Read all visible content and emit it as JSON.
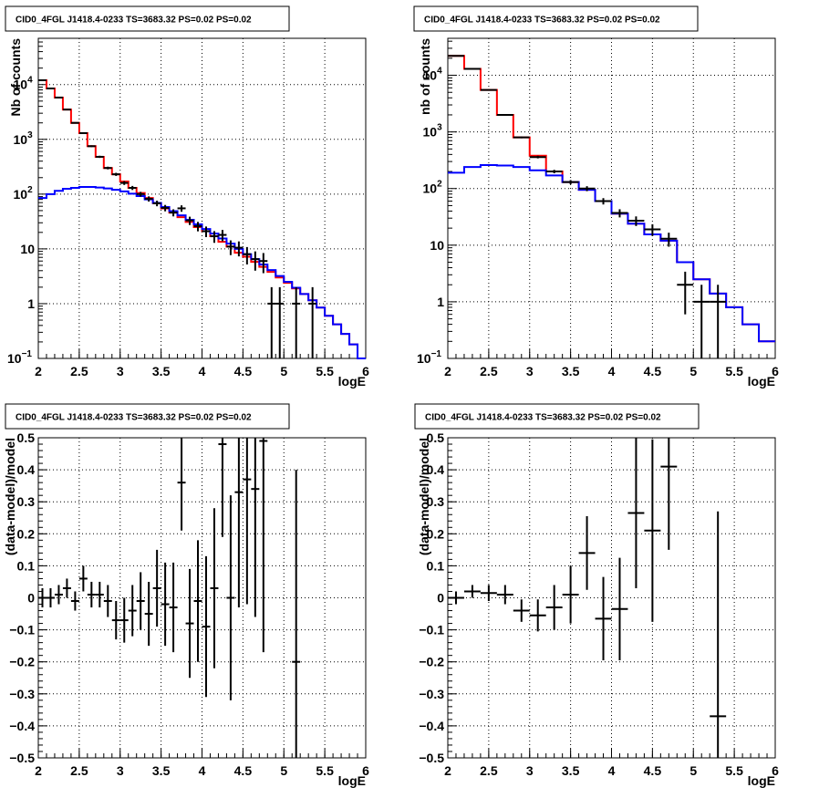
{
  "colors": {
    "model": "#ff0000",
    "background_model": "#0000ff",
    "data": "#000000",
    "grid": "#000000"
  },
  "chart_data": [
    {
      "type": "line",
      "title": "CID0_4FGL J1418.4-0233 TS=3683.32 PS=0.02 PS=0.02",
      "xlabel": "logE",
      "ylabel": "Nb of counts",
      "xlim": [
        2,
        6
      ],
      "ylim": [
        0.1,
        70000
      ],
      "yscale": "log",
      "grid": true,
      "x_ticks": [
        {
          "v": 2,
          "label": "2"
        },
        {
          "v": 2.5,
          "label": "2.5"
        },
        {
          "v": 3,
          "label": "3"
        },
        {
          "v": 3.5,
          "label": "3.5"
        },
        {
          "v": 4,
          "label": "4"
        },
        {
          "v": 4.5,
          "label": "4.5"
        },
        {
          "v": 5,
          "label": "5"
        },
        {
          "v": 5.5,
          "label": "5.5"
        },
        {
          "v": 6,
          "label": "6"
        }
      ],
      "y_ticks": [
        {
          "v": 0.1,
          "label": "10",
          "sup": "−1"
        },
        {
          "v": 1,
          "label": "1"
        },
        {
          "v": 10,
          "label": "10"
        },
        {
          "v": 100,
          "label": "10",
          "sup": "2"
        },
        {
          "v": 1000,
          "label": "10",
          "sup": "3"
        },
        {
          "v": 10000,
          "label": "10",
          "sup": "4"
        }
      ],
      "bin_edges": [
        2.0,
        2.1,
        2.2,
        2.3,
        2.4,
        2.5,
        2.6,
        2.7,
        2.8,
        2.9,
        3.0,
        3.1,
        3.2,
        3.3,
        3.4,
        3.5,
        3.6,
        3.7,
        3.8,
        3.9,
        4.0,
        4.1,
        4.2,
        4.3,
        4.4,
        4.5,
        4.6,
        4.7,
        4.8,
        4.9,
        5.0,
        5.1,
        5.2,
        5.3,
        5.4,
        5.5,
        5.6,
        5.7,
        5.8,
        5.9,
        6.0
      ],
      "series": [
        {
          "kind": "step",
          "color": "#ff0000",
          "values": [
            12000,
            8500,
            5800,
            3500,
            2000,
            1300,
            750,
            480,
            300,
            230,
            170,
            130,
            105,
            85,
            68,
            55,
            46,
            38,
            31,
            25,
            21,
            17,
            13.5,
            11,
            8.5,
            7.2,
            5.8,
            4.7,
            3.8,
            3,
            2.4,
            1.9,
            1.5,
            1.15,
            0.85,
            0.6,
            0.42,
            0.28,
            0.18,
            0.1
          ]
        },
        {
          "kind": "step",
          "color": "#0000ff",
          "values": [
            85,
            100,
            115,
            125,
            130,
            135,
            135,
            132,
            127,
            120,
            112,
            102,
            92,
            80,
            69,
            58,
            49,
            41,
            34,
            28,
            23,
            19,
            15.5,
            12.5,
            10,
            8,
            6.5,
            5.2,
            4.1,
            3.2,
            2.5,
            1.95,
            1.5,
            1.15,
            0.85,
            0.6,
            0.42,
            0.28,
            0.18,
            0.1
          ]
        },
        {
          "kind": "points",
          "color": "#000000",
          "x": [
            2.05,
            2.15,
            2.25,
            2.35,
            2.45,
            2.55,
            2.65,
            2.75,
            2.85,
            2.95,
            3.05,
            3.15,
            3.25,
            3.35,
            3.45,
            3.55,
            3.65,
            3.75,
            3.85,
            3.95,
            4.05,
            4.15,
            4.25,
            4.35,
            4.45,
            4.55,
            4.65,
            4.75,
            4.85,
            4.95,
            5.15,
            5.35
          ],
          "values": [
            12000,
            8500,
            5800,
            3500,
            2000,
            1300,
            750,
            480,
            300,
            230,
            160,
            130,
            100,
            82,
            68,
            56,
            46,
            55,
            33,
            26,
            21,
            17,
            18,
            11,
            10.5,
            8,
            6.5,
            6,
            1,
            1,
            1,
            1
          ],
          "err_low": [
            110,
            92,
            76,
            59,
            45,
            36,
            27,
            22,
            17,
            15,
            13,
            11,
            10,
            9,
            8,
            7.5,
            6.8,
            7.4,
            5.7,
            5.1,
            4.6,
            4.1,
            4.2,
            3.3,
            3.2,
            2.8,
            2.5,
            2.4,
            0.999,
            0.999,
            0.999,
            0.999
          ],
          "err_high": [
            110,
            92,
            76,
            59,
            45,
            36,
            27,
            22,
            17,
            15,
            13,
            11,
            10,
            9,
            8,
            7.5,
            6.8,
            7.4,
            5.7,
            5.1,
            4.6,
            4.1,
            4.2,
            3.3,
            3.2,
            2.8,
            2.5,
            2.4,
            1,
            1,
            1,
            1
          ]
        }
      ]
    },
    {
      "type": "line",
      "title": "CID0_4FGL J1418.4-0233 TS=3683.32 PS=0.02 PS=0.02",
      "xlabel": "logE",
      "ylabel": "nb of counts",
      "xlim": [
        2,
        6
      ],
      "ylim": [
        0.1,
        45000
      ],
      "yscale": "log",
      "grid": true,
      "x_ticks": [
        {
          "v": 2,
          "label": "2"
        },
        {
          "v": 2.5,
          "label": "2.5"
        },
        {
          "v": 3,
          "label": "3"
        },
        {
          "v": 3.5,
          "label": "3.5"
        },
        {
          "v": 4,
          "label": "4"
        },
        {
          "v": 4.5,
          "label": "4.5"
        },
        {
          "v": 5,
          "label": "5"
        },
        {
          "v": 5.5,
          "label": "5.5"
        },
        {
          "v": 6,
          "label": "6"
        }
      ],
      "y_ticks": [
        {
          "v": 0.1,
          "label": "10",
          "sup": "−1"
        },
        {
          "v": 1,
          "label": "1"
        },
        {
          "v": 10,
          "label": "10"
        },
        {
          "v": 100,
          "label": "10",
          "sup": "2"
        },
        {
          "v": 1000,
          "label": "10",
          "sup": "3"
        },
        {
          "v": 10000,
          "label": "10",
          "sup": "4"
        }
      ],
      "bin_edges": [
        2.0,
        2.2,
        2.4,
        2.6,
        2.8,
        3.0,
        3.2,
        3.4,
        3.6,
        3.8,
        4.0,
        4.2,
        4.4,
        4.6,
        4.8,
        5.0,
        5.2,
        5.4,
        5.6,
        5.8,
        6.0
      ],
      "series": [
        {
          "kind": "step",
          "color": "#ff0000",
          "values": [
            22000,
            13000,
            5500,
            2000,
            800,
            380,
            200,
            130,
            95,
            60,
            36,
            24,
            15.5,
            12,
            5,
            2.5,
            1.4,
            0.8,
            0.4,
            0.2
          ]
        },
        {
          "kind": "step",
          "color": "#0000ff",
          "values": [
            190,
            240,
            260,
            255,
            240,
            210,
            170,
            130,
            95,
            60,
            36,
            24,
            15.5,
            12,
            5,
            2.5,
            1.4,
            0.8,
            0.4,
            0.2
          ]
        },
        {
          "kind": "points",
          "color": "#000000",
          "x": [
            2.1,
            2.3,
            2.5,
            2.7,
            2.9,
            3.1,
            3.3,
            3.5,
            3.7,
            3.9,
            4.1,
            4.3,
            4.5,
            4.7,
            4.9,
            5.1,
            5.3
          ],
          "values": [
            22000,
            13000,
            5500,
            2000,
            800,
            360,
            200,
            130,
            100,
            60,
            37,
            27,
            19,
            13,
            2,
            1,
            1
          ],
          "err_low": [
            150,
            115,
            75,
            45,
            28,
            19,
            14,
            11,
            10,
            7.7,
            6.1,
            5.2,
            4.4,
            3.6,
            1.4,
            0.999,
            0.999
          ],
          "err_high": [
            150,
            115,
            75,
            45,
            28,
            19,
            14,
            11,
            10,
            7.7,
            6.1,
            5.2,
            4.4,
            3.6,
            1.4,
            1,
            1
          ]
        }
      ]
    },
    {
      "type": "scatter",
      "title": "CID0_4FGL J1418.4-0233 TS=3683.32 PS=0.02 PS=0.02",
      "xlabel": "logE",
      "ylabel": "(data-model)/model",
      "xlim": [
        2,
        6
      ],
      "ylim": [
        -0.5,
        0.5
      ],
      "yscale": "linear",
      "grid": true,
      "x_ticks": [
        {
          "v": 2,
          "label": "2"
        },
        {
          "v": 2.5,
          "label": "2.5"
        },
        {
          "v": 3,
          "label": "3"
        },
        {
          "v": 3.5,
          "label": "3.5"
        },
        {
          "v": 4,
          "label": "4"
        },
        {
          "v": 4.5,
          "label": "4.5"
        },
        {
          "v": 5,
          "label": "5"
        },
        {
          "v": 5.5,
          "label": "5.5"
        },
        {
          "v": 6,
          "label": "6"
        }
      ],
      "y_ticks": [
        {
          "v": -0.5,
          "label": "−0.5"
        },
        {
          "v": -0.4,
          "label": "−0.4"
        },
        {
          "v": -0.3,
          "label": "−0.3"
        },
        {
          "v": -0.2,
          "label": "−0.2"
        },
        {
          "v": -0.1,
          "label": "−0.1"
        },
        {
          "v": 0,
          "label": "0"
        },
        {
          "v": 0.1,
          "label": "0.1"
        },
        {
          "v": 0.2,
          "label": "0.2"
        },
        {
          "v": 0.3,
          "label": "0.3"
        },
        {
          "v": 0.4,
          "label": "0.4"
        },
        {
          "v": 0.5,
          "label": "0.5"
        }
      ],
      "x_halfwidth": 0.05,
      "series": [
        {
          "kind": "points",
          "color": "#000000",
          "x": [
            2.05,
            2.15,
            2.25,
            2.35,
            2.45,
            2.55,
            2.65,
            2.75,
            2.85,
            2.95,
            3.05,
            3.15,
            3.25,
            3.35,
            3.45,
            3.55,
            3.65,
            3.75,
            3.85,
            3.95,
            4.05,
            4.15,
            4.25,
            4.35,
            4.45,
            4.55,
            4.65,
            4.75,
            5.15
          ],
          "values": [
            0.0,
            0.0,
            0.01,
            0.03,
            -0.01,
            0.06,
            0.01,
            0.01,
            -0.01,
            -0.07,
            -0.07,
            -0.04,
            -0.01,
            -0.05,
            0.03,
            -0.02,
            -0.03,
            0.36,
            -0.08,
            -0.01,
            -0.09,
            0.03,
            0.48,
            0.0,
            0.33,
            0.37,
            0.34,
            0.49,
            -0.2
          ],
          "err": [
            0.03,
            0.03,
            0.03,
            0.03,
            0.03,
            0.04,
            0.04,
            0.04,
            0.05,
            0.06,
            0.07,
            0.08,
            0.09,
            0.1,
            0.12,
            0.13,
            0.14,
            0.15,
            0.17,
            0.19,
            0.22,
            0.25,
            0.29,
            0.32,
            0.36,
            0.39,
            0.4,
            0.66,
            0.6
          ]
        }
      ]
    },
    {
      "type": "scatter",
      "title": "CID0_4FGL J1418.4-0233 TS=3683.32 PS=0.02 PS=0.02",
      "xlabel": "logE",
      "ylabel": "(data-model)/model",
      "xlim": [
        2,
        6
      ],
      "ylim": [
        -0.5,
        0.5
      ],
      "yscale": "linear",
      "grid": true,
      "x_ticks": [
        {
          "v": 2,
          "label": "2"
        },
        {
          "v": 2.5,
          "label": "2.5"
        },
        {
          "v": 3,
          "label": "3"
        },
        {
          "v": 3.5,
          "label": "3.5"
        },
        {
          "v": 4,
          "label": "4"
        },
        {
          "v": 4.5,
          "label": "4.5"
        },
        {
          "v": 5,
          "label": "5"
        },
        {
          "v": 5.5,
          "label": "5.5"
        },
        {
          "v": 6,
          "label": "6"
        }
      ],
      "y_ticks": [
        {
          "v": -0.5,
          "label": "−0.5"
        },
        {
          "v": -0.4,
          "label": "−0.4"
        },
        {
          "v": -0.3,
          "label": "−0.3"
        },
        {
          "v": -0.2,
          "label": "−0.2"
        },
        {
          "v": -0.1,
          "label": "−0.1"
        },
        {
          "v": 0,
          "label": "0"
        },
        {
          "v": 0.1,
          "label": "0.1"
        },
        {
          "v": 0.2,
          "label": "0.2"
        },
        {
          "v": 0.3,
          "label": "0.3"
        },
        {
          "v": 0.4,
          "label": "0.4"
        },
        {
          "v": 0.5,
          "label": "0.5"
        }
      ],
      "x_halfwidth": 0.1,
      "series": [
        {
          "kind": "points",
          "color": "#000000",
          "x": [
            2.1,
            2.3,
            2.5,
            2.7,
            2.9,
            3.1,
            3.3,
            3.5,
            3.7,
            3.9,
            4.1,
            4.3,
            4.5,
            4.7,
            5.3
          ],
          "values": [
            0.0,
            0.02,
            0.015,
            0.01,
            -0.04,
            -0.055,
            -0.03,
            0.01,
            0.14,
            -0.065,
            -0.035,
            0.265,
            0.21,
            0.41,
            -0.37
          ],
          "err": [
            0.02,
            0.02,
            0.025,
            0.03,
            0.035,
            0.05,
            0.07,
            0.09,
            0.115,
            0.13,
            0.16,
            0.235,
            0.285,
            0.26,
            0.64
          ]
        }
      ]
    }
  ]
}
